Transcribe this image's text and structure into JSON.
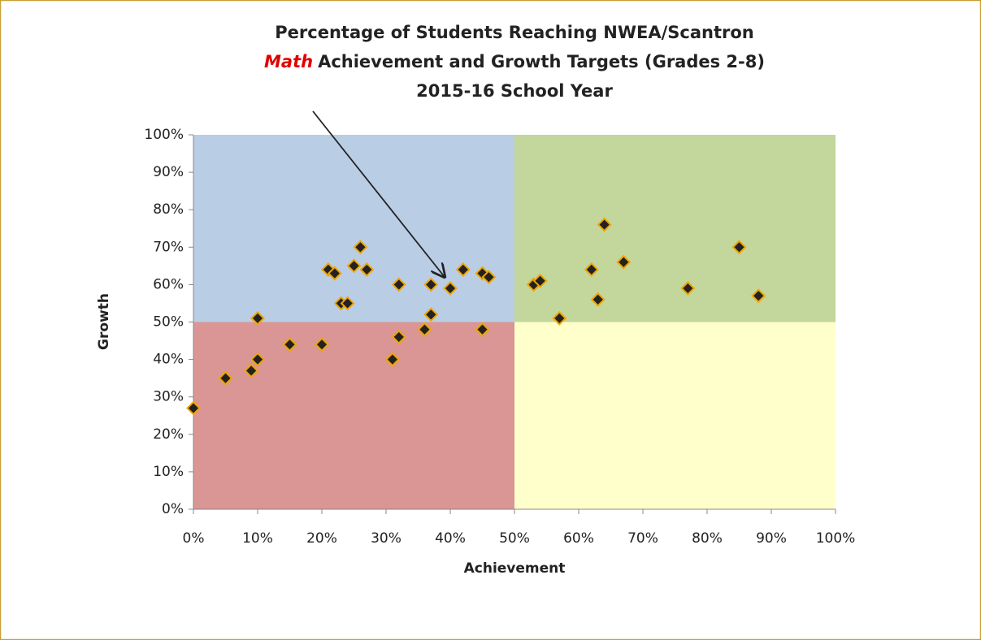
{
  "chart_data": {
    "type": "scatter",
    "title_lines": [
      "Percentage of Students Reaching NWEA/Scantron",
      "Math",
      "Achievement and Growth Targets (Grades 2-8)",
      "2015-16 School Year"
    ],
    "xlabel": "Achievement",
    "ylabel": "Growth",
    "x": [
      0,
      5,
      9,
      10,
      10,
      15,
      20,
      21,
      22,
      23,
      24,
      25,
      26,
      27,
      31,
      32,
      32,
      36,
      37,
      37,
      40,
      42,
      45,
      45,
      46,
      53,
      54,
      57,
      62,
      63,
      64,
      67,
      77,
      85,
      88
    ],
    "values": [
      27,
      35,
      37,
      51,
      40,
      44,
      44,
      64,
      63,
      55,
      55,
      65,
      70,
      64,
      40,
      60,
      46,
      48,
      60,
      52,
      59,
      64,
      63,
      48,
      62,
      60,
      61,
      51,
      64,
      56,
      76,
      66,
      59,
      70,
      57
    ],
    "color": "#222222",
    "edge_color": "#f0a500",
    "xlim": [
      0,
      100
    ],
    "ylim": [
      0,
      100
    ],
    "xticks": [
      {
        "value": 0,
        "label": "0%"
      },
      {
        "value": 10,
        "label": "10%"
      },
      {
        "value": 20,
        "label": "20%"
      },
      {
        "value": 30,
        "label": "30%"
      },
      {
        "value": 40,
        "label": "40%"
      },
      {
        "value": 50,
        "label": "50%"
      },
      {
        "value": 60,
        "label": "60%"
      },
      {
        "value": 70,
        "label": "70%"
      },
      {
        "value": 80,
        "label": "80%"
      },
      {
        "value": 90,
        "label": "90%"
      },
      {
        "value": 100,
        "label": "100%"
      }
    ],
    "yticks": [
      {
        "value": 0,
        "label": "0%"
      },
      {
        "value": 10,
        "label": "10%"
      },
      {
        "value": 20,
        "label": "20%"
      },
      {
        "value": 30,
        "label": "30%"
      },
      {
        "value": 40,
        "label": "40%"
      },
      {
        "value": 50,
        "label": "50%"
      },
      {
        "value": 60,
        "label": "60%"
      },
      {
        "value": 70,
        "label": "70%"
      },
      {
        "value": 80,
        "label": "80%"
      },
      {
        "value": 90,
        "label": "90%"
      },
      {
        "value": 100,
        "label": "100%"
      }
    ],
    "threshold_x": 50,
    "threshold_y": 50,
    "quadrant_colors": {
      "top_left": "#b9cde5",
      "top_right": "#c3d69b",
      "bottom_left": "#d99694",
      "bottom_right": "#ffffcc"
    },
    "title_highlight_color": "#e00000"
  }
}
